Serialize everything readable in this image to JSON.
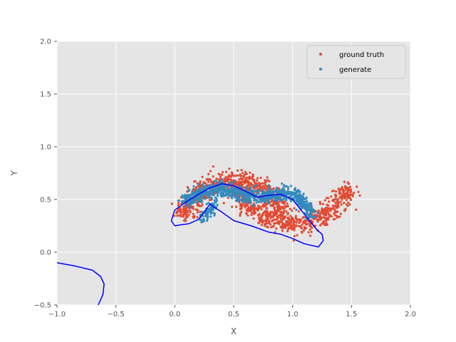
{
  "chart_data": {
    "type": "scatter",
    "title": "",
    "xlabel": "X",
    "ylabel": "Y",
    "xlim": [
      -1.0,
      2.0
    ],
    "ylim": [
      -0.5,
      2.0
    ],
    "xticks": [
      "−1.0",
      "−0.5",
      "0.0",
      "0.5",
      "1.0",
      "1.5",
      "2.0"
    ],
    "yticks": [
      "−0.5",
      "0.0",
      "0.5",
      "1.0",
      "1.5",
      "2.0"
    ],
    "grid": true,
    "legend_position": "top-right",
    "legend": [
      {
        "label": "ground truth",
        "color": "#E24A33"
      },
      {
        "label": "generate",
        "color": "#348ABD"
      }
    ],
    "series": [
      {
        "name": "ground truth",
        "kind": "scatter",
        "color": "#E24A33",
        "shape": "two-moons",
        "upper_moon": {
          "center": [
            0.5,
            0.25
          ],
          "radius": 0.43,
          "angle_range": [
            15,
            170
          ]
        },
        "lower_moon": {
          "center": [
            1.0,
            0.75
          ],
          "radius": 0.48,
          "angle_range": [
            195,
            345
          ]
        },
        "extent": {
          "x": [
            -0.12,
            1.32
          ],
          "y": [
            0.14,
            0.75
          ]
        }
      },
      {
        "name": "generate",
        "kind": "scatter",
        "color": "#348ABD",
        "shape": "band",
        "path": [
          [
            0.08,
            0.48
          ],
          [
            0.22,
            0.56
          ],
          [
            0.38,
            0.6
          ],
          [
            0.55,
            0.56
          ],
          [
            0.7,
            0.52
          ],
          [
            0.85,
            0.55
          ],
          [
            0.98,
            0.57
          ],
          [
            1.08,
            0.48
          ],
          [
            1.18,
            0.35
          ]
        ],
        "secondary_path": [
          [
            0.22,
            0.3
          ],
          [
            0.28,
            0.38
          ],
          [
            0.35,
            0.45
          ]
        ],
        "extent": {
          "x": [
            0.05,
            1.22
          ],
          "y": [
            0.26,
            0.64
          ]
        }
      },
      {
        "name": "boundary",
        "kind": "line",
        "color": "#0000FF",
        "points": [
          [
            0.0,
            0.25
          ],
          [
            -0.03,
            0.3
          ],
          [
            0.0,
            0.4
          ],
          [
            0.1,
            0.48
          ],
          [
            0.2,
            0.55
          ],
          [
            0.3,
            0.61
          ],
          [
            0.4,
            0.65
          ],
          [
            0.5,
            0.63
          ],
          [
            0.6,
            0.58
          ],
          [
            0.7,
            0.52
          ],
          [
            0.8,
            0.54
          ],
          [
            0.9,
            0.55
          ],
          [
            1.0,
            0.5
          ],
          [
            1.1,
            0.36
          ],
          [
            1.2,
            0.22
          ],
          [
            1.25,
            0.17
          ],
          [
            1.26,
            0.11
          ],
          [
            1.22,
            0.05
          ],
          [
            1.1,
            0.08
          ],
          [
            1.0,
            0.13
          ],
          [
            0.9,
            0.17
          ],
          [
            0.8,
            0.19
          ],
          [
            0.65,
            0.25
          ],
          [
            0.5,
            0.3
          ],
          [
            0.4,
            0.38
          ],
          [
            0.33,
            0.43
          ],
          [
            0.3,
            0.46
          ],
          [
            0.25,
            0.38
          ],
          [
            0.2,
            0.31
          ],
          [
            0.12,
            0.27
          ],
          [
            0.05,
            0.26
          ],
          [
            0.0,
            0.25
          ]
        ]
      },
      {
        "name": "boundary-2",
        "kind": "line",
        "color": "#0000FF",
        "points": [
          [
            -1.0,
            -0.1
          ],
          [
            -0.85,
            -0.13
          ],
          [
            -0.7,
            -0.17
          ],
          [
            -0.63,
            -0.23
          ],
          [
            -0.6,
            -0.3
          ],
          [
            -0.61,
            -0.4
          ],
          [
            -0.65,
            -0.5
          ]
        ]
      }
    ]
  }
}
